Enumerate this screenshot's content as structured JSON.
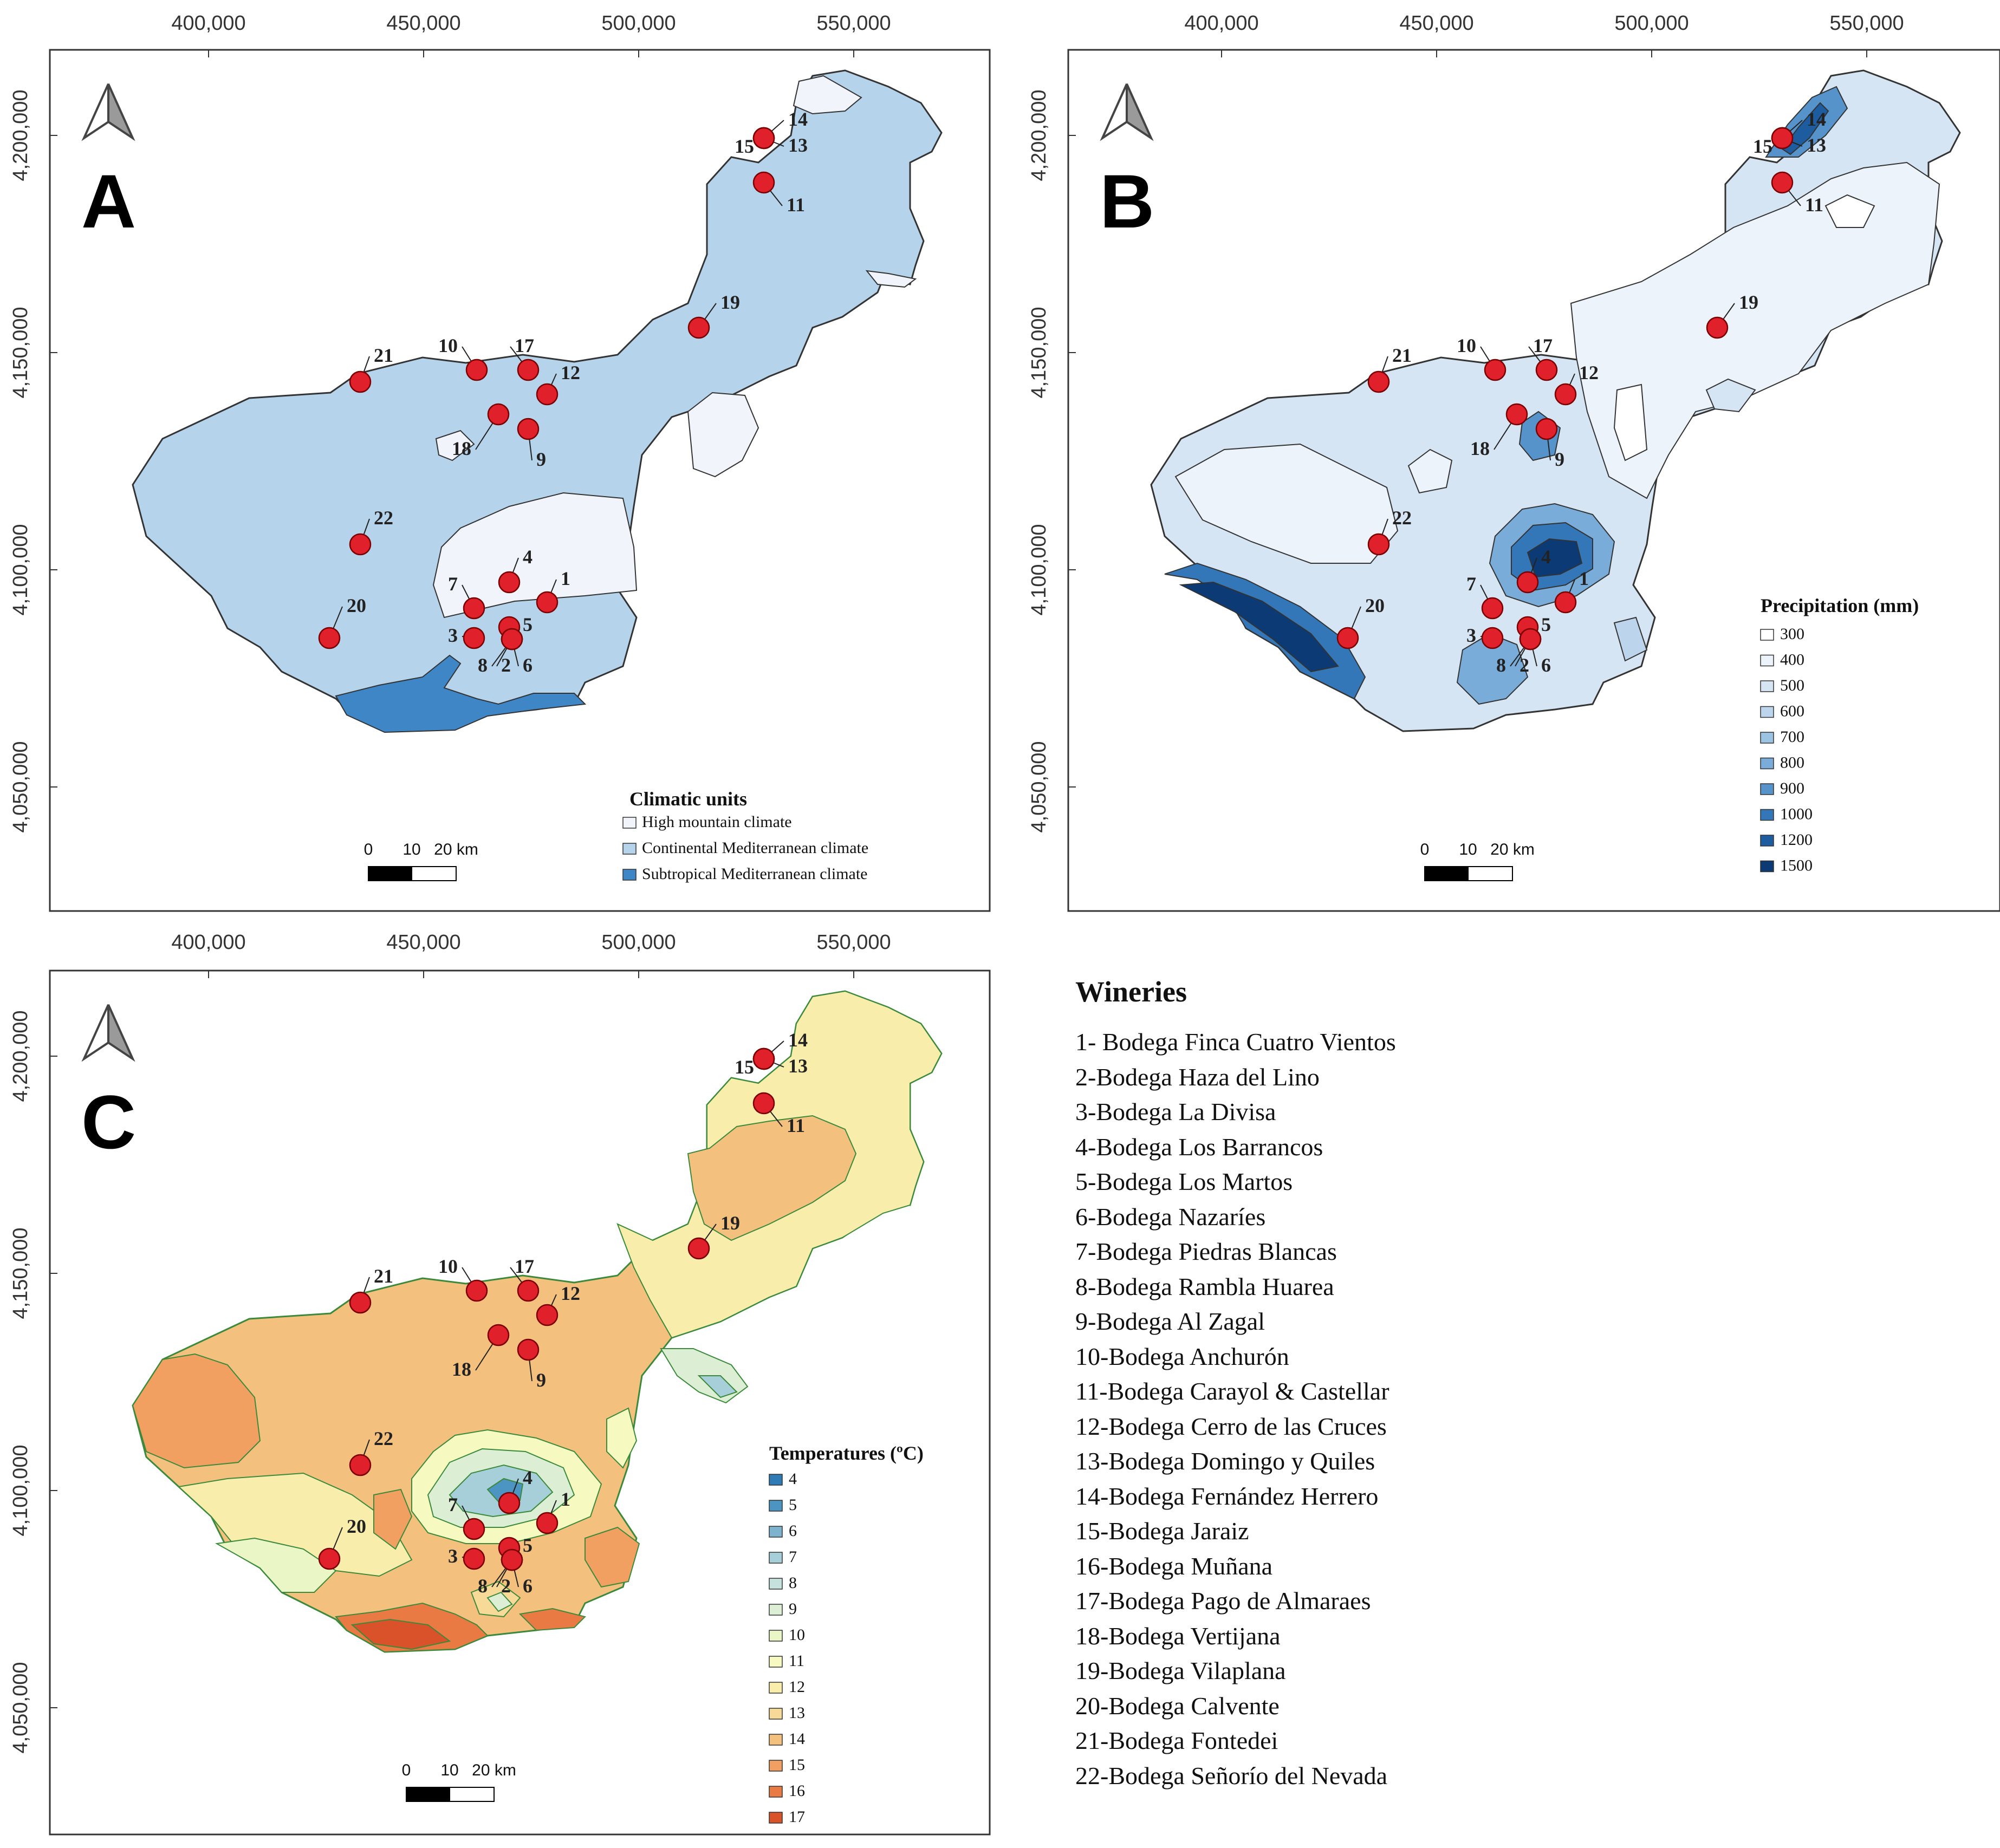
{
  "colors": {
    "high_mountain": "#f1f5fb",
    "continental": "#b5d3ea",
    "subtropical": "#3f86c6",
    "marker": "#e0202a",
    "border": "#333333"
  },
  "axes": {
    "x_ticks": [
      "400,000",
      "450,000",
      "500,000",
      "550,000"
    ],
    "y_ticks": [
      "4,200,000",
      "4,150,000",
      "4,100,000",
      "4,050,000"
    ]
  },
  "scalebar": {
    "labels": [
      "0",
      "10",
      "20 km"
    ]
  },
  "north_arrow": "north-arrow-icon",
  "panels": {
    "A": {
      "letter": "A",
      "legend_title": "Climatic units",
      "legend_items": [
        {
          "label": "High mountain climate",
          "color": "#f1f5fb"
        },
        {
          "label": "Continental Mediterranean climate",
          "color": "#b5d3ea"
        },
        {
          "label": "Subtropical Mediterranean climate",
          "color": "#3f86c6"
        }
      ]
    },
    "B": {
      "letter": "B",
      "legend_title": "Precipitation (mm)",
      "legend_items": [
        {
          "label": "300",
          "color": "#ffffff"
        },
        {
          "label": "400",
          "color": "#edf3fa"
        },
        {
          "label": "500",
          "color": "#d6e5f3"
        },
        {
          "label": "600",
          "color": "#bcd5ec"
        },
        {
          "label": "700",
          "color": "#9dc3e3"
        },
        {
          "label": "800",
          "color": "#79acd8"
        },
        {
          "label": "900",
          "color": "#5593ca"
        },
        {
          "label": "1000",
          "color": "#3477b8"
        },
        {
          "label": "1200",
          "color": "#1c5c9f"
        },
        {
          "label": "1500",
          "color": "#0c3a75"
        }
      ]
    },
    "C": {
      "letter": "C",
      "legend_title": "Temperatures (ºC)",
      "legend_items": [
        {
          "label": "4",
          "color": "#2f7bb5"
        },
        {
          "label": "5",
          "color": "#4c95c3"
        },
        {
          "label": "6",
          "color": "#7db3cf"
        },
        {
          "label": "7",
          "color": "#a7cfd9"
        },
        {
          "label": "8",
          "color": "#c6e2dc"
        },
        {
          "label": "9",
          "color": "#dcefd4"
        },
        {
          "label": "10",
          "color": "#eaf6c6"
        },
        {
          "label": "11",
          "color": "#f6f9c0"
        },
        {
          "label": "12",
          "color": "#f9edac"
        },
        {
          "label": "13",
          "color": "#f8da98"
        },
        {
          "label": "14",
          "color": "#f4c07e"
        },
        {
          "label": "15",
          "color": "#f1a061"
        },
        {
          "label": "16",
          "color": "#e97a43"
        },
        {
          "label": "17",
          "color": "#d9522a"
        }
      ]
    }
  },
  "winery_markers": [
    "1",
    "2",
    "3",
    "4",
    "5",
    "6",
    "7",
    "8",
    "9",
    "10",
    "11",
    "12",
    "13",
    "14",
    "15",
    "17",
    "18",
    "19",
    "20",
    "21",
    "22"
  ],
  "wineries": {
    "title": "Wineries",
    "items": [
      "1- Bodega Finca Cuatro Vientos",
      "2-Bodega Haza del Lino",
      "3-Bodega La Divisa",
      "4-Bodega Los Barrancos",
      "5-Bodega Los Martos",
      "6-Bodega Nazaríes",
      "7-Bodega Piedras Blancas",
      "8-Bodega Rambla Huarea",
      "9-Bodega Al Zagal",
      "10-Bodega Anchurón",
      "11-Bodega Carayol & Castellar",
      "12-Bodega Cerro de las Cruces",
      "13-Bodega Domingo y Quiles",
      "14-Bodega Fernández Herrero",
      "15-Bodega Jaraiz",
      "16-Bodega Muñana",
      "17-Bodega Pago de Almaraes",
      "18-Bodega Vertijana",
      "19-Bodega Vilaplana",
      "20-Bodega Calvente",
      "21-Bodega Fontedei",
      "22-Bodega Señorío del Nevada"
    ]
  }
}
